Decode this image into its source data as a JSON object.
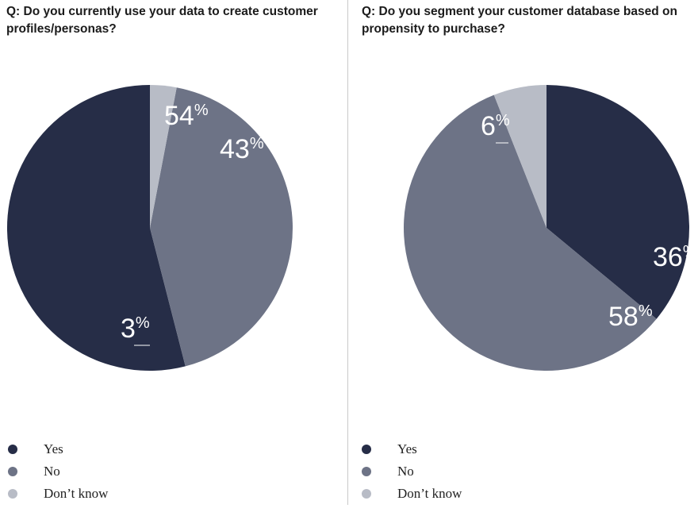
{
  "colors": {
    "yes": "#262d47",
    "no": "#6d7386",
    "dont_know": "#b8bcc6",
    "divider": "#c9c9c9"
  },
  "chart_data": [
    {
      "type": "pie",
      "title": "Q: Do you currently use your data to create customer profiles/personas?",
      "slices": [
        {
          "label": "Yes",
          "value": 54,
          "text": "54",
          "unit": "%"
        },
        {
          "label": "No",
          "value": 43,
          "text": "43",
          "unit": "%"
        },
        {
          "label": "Don’t know",
          "value": 3,
          "text": "3",
          "unit": "%"
        }
      ],
      "legend": [
        "Yes",
        "No",
        "Don’t know"
      ],
      "legend_position": "bottom-left"
    },
    {
      "type": "pie",
      "title": "Q: Do you segment your customer database based on propensity to purchase?",
      "slices": [
        {
          "label": "Yes",
          "value": 36,
          "text": "36",
          "unit": "%"
        },
        {
          "label": "No",
          "value": 58,
          "text": "58",
          "unit": "%"
        },
        {
          "label": "Don’t know",
          "value": 6,
          "text": "6",
          "unit": "%"
        }
      ],
      "legend": [
        "Yes",
        "No",
        "Don’t know"
      ],
      "legend_position": "bottom-left"
    }
  ]
}
